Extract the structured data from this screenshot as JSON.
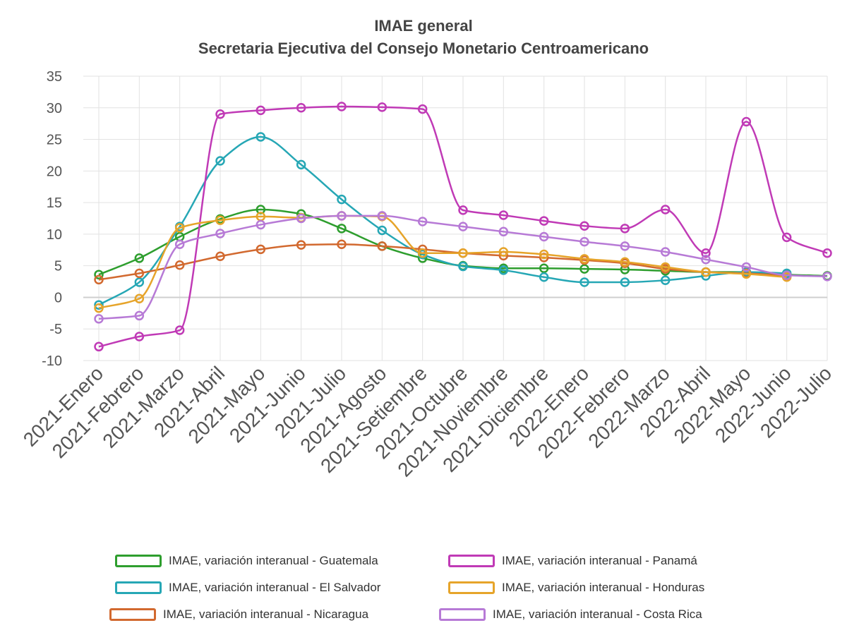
{
  "chart_data": {
    "type": "line",
    "title": "IMAE general",
    "subtitle": "Secretaria Ejecutiva del Consejo Monetario Centroamericano",
    "ylim": [
      -10,
      35
    ],
    "yticks": [
      -10,
      -5,
      0,
      5,
      10,
      15,
      20,
      25,
      30,
      35
    ],
    "grid": true,
    "legend_position": "bottom",
    "categories": [
      "2021-Enero",
      "2021-Febrero",
      "2021-Marzo",
      "2021-Abril",
      "2021-Mayo",
      "2021-Junio",
      "2021-Julio",
      "2021-Agosto",
      "2021-Setiembre",
      "2021-Octubre",
      "2021-Noviembre",
      "2021-Diciembre",
      "2022-Enero",
      "2022-Febrero",
      "2022-Marzo",
      "2022-Abril",
      "2022-Mayo",
      "2022-Junio",
      "2022-Julio"
    ],
    "series": [
      {
        "name": "IMAE, variación interanual - Guatemala",
        "color": "#2e9e2e",
        "values": [
          3.6,
          6.2,
          9.6,
          12.4,
          13.9,
          13.2,
          10.9,
          8.1,
          6.2,
          5.0,
          4.6,
          4.6,
          4.5,
          4.4,
          4.2,
          4.0,
          4.0,
          3.6,
          3.4
        ]
      },
      {
        "name": "IMAE, variación interanual - El Salvador",
        "color": "#26a7b5",
        "values": [
          -1.2,
          2.4,
          11.2,
          21.6,
          25.4,
          21.0,
          15.5,
          10.6,
          6.8,
          4.9,
          4.3,
          3.2,
          2.4,
          2.4,
          2.7,
          3.4,
          4.0,
          3.8,
          null
        ]
      },
      {
        "name": "IMAE, variación interanual - Nicaragua",
        "color": "#d2692f",
        "values": [
          2.8,
          3.8,
          5.1,
          6.5,
          7.6,
          8.3,
          8.4,
          8.1,
          7.6,
          7.0,
          6.6,
          6.3,
          5.9,
          5.4,
          4.5,
          4.0,
          3.8,
          3.4,
          null
        ]
      },
      {
        "name": "IMAE, variación interanual - Panamá",
        "color": "#c03ab6",
        "values": [
          -7.8,
          -6.2,
          -5.2,
          29.0,
          29.6,
          30.0,
          30.2,
          30.1,
          29.8,
          13.8,
          13.0,
          12.1,
          11.3,
          10.9,
          13.9,
          7.0,
          27.8,
          9.5,
          7.0
        ]
      },
      {
        "name": "IMAE, variación interanual - Honduras",
        "color": "#e6a42a",
        "values": [
          -1.7,
          -0.2,
          11.0,
          12.2,
          12.8,
          12.6,
          12.9,
          12.8,
          7.0,
          7.0,
          7.2,
          6.8,
          6.1,
          5.6,
          4.8,
          4.0,
          3.7,
          3.2,
          null
        ]
      },
      {
        "name": "IMAE, variación interanual - Costa Rica",
        "color": "#b77ad6",
        "values": [
          -3.4,
          -2.9,
          8.4,
          10.1,
          11.5,
          12.5,
          12.9,
          12.9,
          12.0,
          11.2,
          10.4,
          9.6,
          8.8,
          8.1,
          7.2,
          6.0,
          4.8,
          3.5,
          3.3
        ]
      }
    ]
  }
}
